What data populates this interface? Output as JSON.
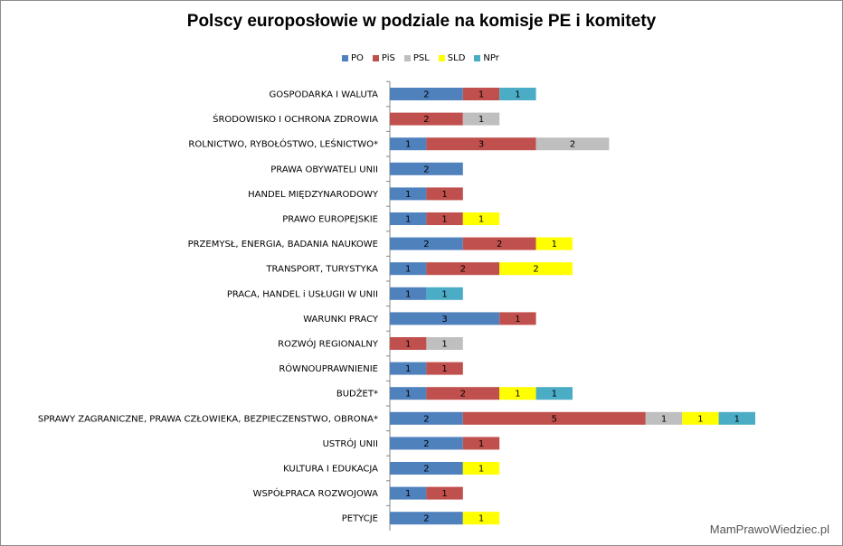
{
  "chart_data": {
    "type": "bar",
    "orientation": "horizontal",
    "stacked": true,
    "title": "Polscy europosłowie w podziale na komisje PE i komitety",
    "legend_position": "top",
    "categories": [
      "GOSPODARKA I WALUTA",
      "ŚRODOWISKO I OCHRONA ZDROWIA",
      "ROLNICTWO, RYBOŁÓSTWO, LEŚNICTWO*",
      "PRAWA OBYWATELI UNII",
      "HANDEL MIĘDZYNARODOWY",
      "PRAWO EUROPEJSKIE",
      "PRZEMYSŁ, ENERGIA,  BADANIA NAUKOWE",
      "TRANSPORT, TURYSTYKA",
      "PRACA, HANDEL  i  USŁUGII  W UNII",
      "WARUNKI PRACY",
      "ROZWÓJ REGIONALNY",
      "RÓWNOUPRAWNIENIE",
      "BUDŻET*",
      "SPRAWY ZAGRANICZNE,  PRAWA CZŁOWIEKA, BEZPIECZENSTWO,  OBRONA*",
      "USTRÓJ UNII",
      "KULTURA I EDUKACJA",
      "WSPÓŁPRACA ROZWOJOWA",
      "PETYCJE"
    ],
    "series": [
      {
        "name": "PO",
        "color": "#4f81bd",
        "values": [
          2,
          0,
          1,
          2,
          1,
          1,
          2,
          1,
          1,
          3,
          0,
          1,
          1,
          2,
          2,
          2,
          1,
          2
        ]
      },
      {
        "name": "PiS",
        "color": "#c0504d",
        "values": [
          1,
          2,
          3,
          0,
          1,
          1,
          2,
          2,
          0,
          1,
          1,
          1,
          2,
          5,
          1,
          0,
          1,
          0
        ]
      },
      {
        "name": "PSL",
        "color": "#bfbfbf",
        "values": [
          0,
          1,
          2,
          0,
          0,
          0,
          0,
          0,
          0,
          0,
          1,
          0,
          0,
          1,
          0,
          0,
          0,
          0
        ]
      },
      {
        "name": "SLD",
        "color": "#ffff00",
        "values": [
          0,
          0,
          0,
          0,
          0,
          1,
          1,
          2,
          0,
          0,
          0,
          0,
          1,
          1,
          0,
          1,
          0,
          1
        ]
      },
      {
        "name": "NPr",
        "color": "#4bacc6",
        "values": [
          1,
          0,
          0,
          0,
          0,
          0,
          0,
          0,
          1,
          0,
          0,
          0,
          1,
          1,
          0,
          0,
          0,
          0
        ]
      }
    ],
    "xlim": [
      0,
      10
    ],
    "grid": false
  },
  "watermark": "MamPrawoWiedziec.pl"
}
